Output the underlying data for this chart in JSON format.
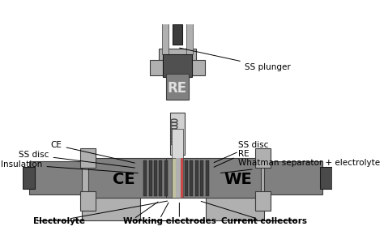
{
  "bg_color": "#ffffff",
  "title": "",
  "fig_width": 4.74,
  "fig_height": 3.11,
  "dpi": 100,
  "colors": {
    "gray_dark": "#4a4a4a",
    "gray_medium": "#808080",
    "gray_light": "#b0b0b0",
    "gray_lighter": "#c8c8c8",
    "gray_body": "#909090",
    "black": "#1a1a1a",
    "white": "#ffffff",
    "silver": "#d0d0d0",
    "spring_green": "#c8c864",
    "dark_gray": "#3c3c3c",
    "re_body": "#505050",
    "red_accent": "#c04040",
    "text_color": "#000000"
  },
  "labels": {
    "CE": "CE",
    "WE": "WE",
    "RE": "RE",
    "SS_plunger": "SS plunger",
    "SS_disc_left": "SS disc",
    "CE_left": "CE",
    "Insulation": "Insulation",
    "SS_disc_right": "SS disc",
    "RE_right": "RE",
    "Whatman": "Whatman separator + electrolyte",
    "Electrolyte": "Electrolyte",
    "Working_electrodes": "Working electrodes",
    "Current_collectors": "Current collectors"
  }
}
